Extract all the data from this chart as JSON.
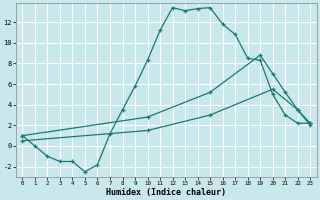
{
  "xlabel": "Humidex (Indice chaleur)",
  "background_color": "#c8e8ec",
  "grid_color": "#ffffff",
  "line_color": "#1a7a6e",
  "x_min": -0.5,
  "x_max": 23.5,
  "y_min": -3.0,
  "y_max": 13.8,
  "x_ticks": [
    0,
    1,
    2,
    3,
    4,
    5,
    6,
    7,
    8,
    9,
    10,
    11,
    12,
    13,
    14,
    15,
    16,
    17,
    18,
    19,
    20,
    21,
    22,
    23
  ],
  "y_ticks": [
    -2,
    0,
    2,
    4,
    6,
    8,
    10,
    12
  ],
  "series1_x": [
    0,
    1,
    2,
    3,
    4,
    5,
    6,
    7,
    8,
    9,
    10,
    11,
    12,
    13,
    14,
    15,
    16,
    17,
    18,
    19,
    20,
    21,
    22,
    23
  ],
  "series1_y": [
    1.0,
    0.0,
    -1.0,
    -1.5,
    -1.5,
    -2.5,
    -1.8,
    1.2,
    3.5,
    5.8,
    8.3,
    11.2,
    13.4,
    13.1,
    13.3,
    13.4,
    11.8,
    10.8,
    8.5,
    8.3,
    5.0,
    3.0,
    2.2,
    2.2
  ],
  "series2_x": [
    0,
    10,
    15,
    19,
    20,
    21,
    22,
    23
  ],
  "series2_y": [
    1.0,
    2.8,
    5.2,
    8.8,
    7.0,
    5.2,
    3.5,
    2.2
  ],
  "series3_x": [
    0,
    10,
    15,
    20,
    22,
    23
  ],
  "series3_y": [
    0.5,
    1.5,
    3.0,
    5.5,
    3.5,
    2.0
  ]
}
